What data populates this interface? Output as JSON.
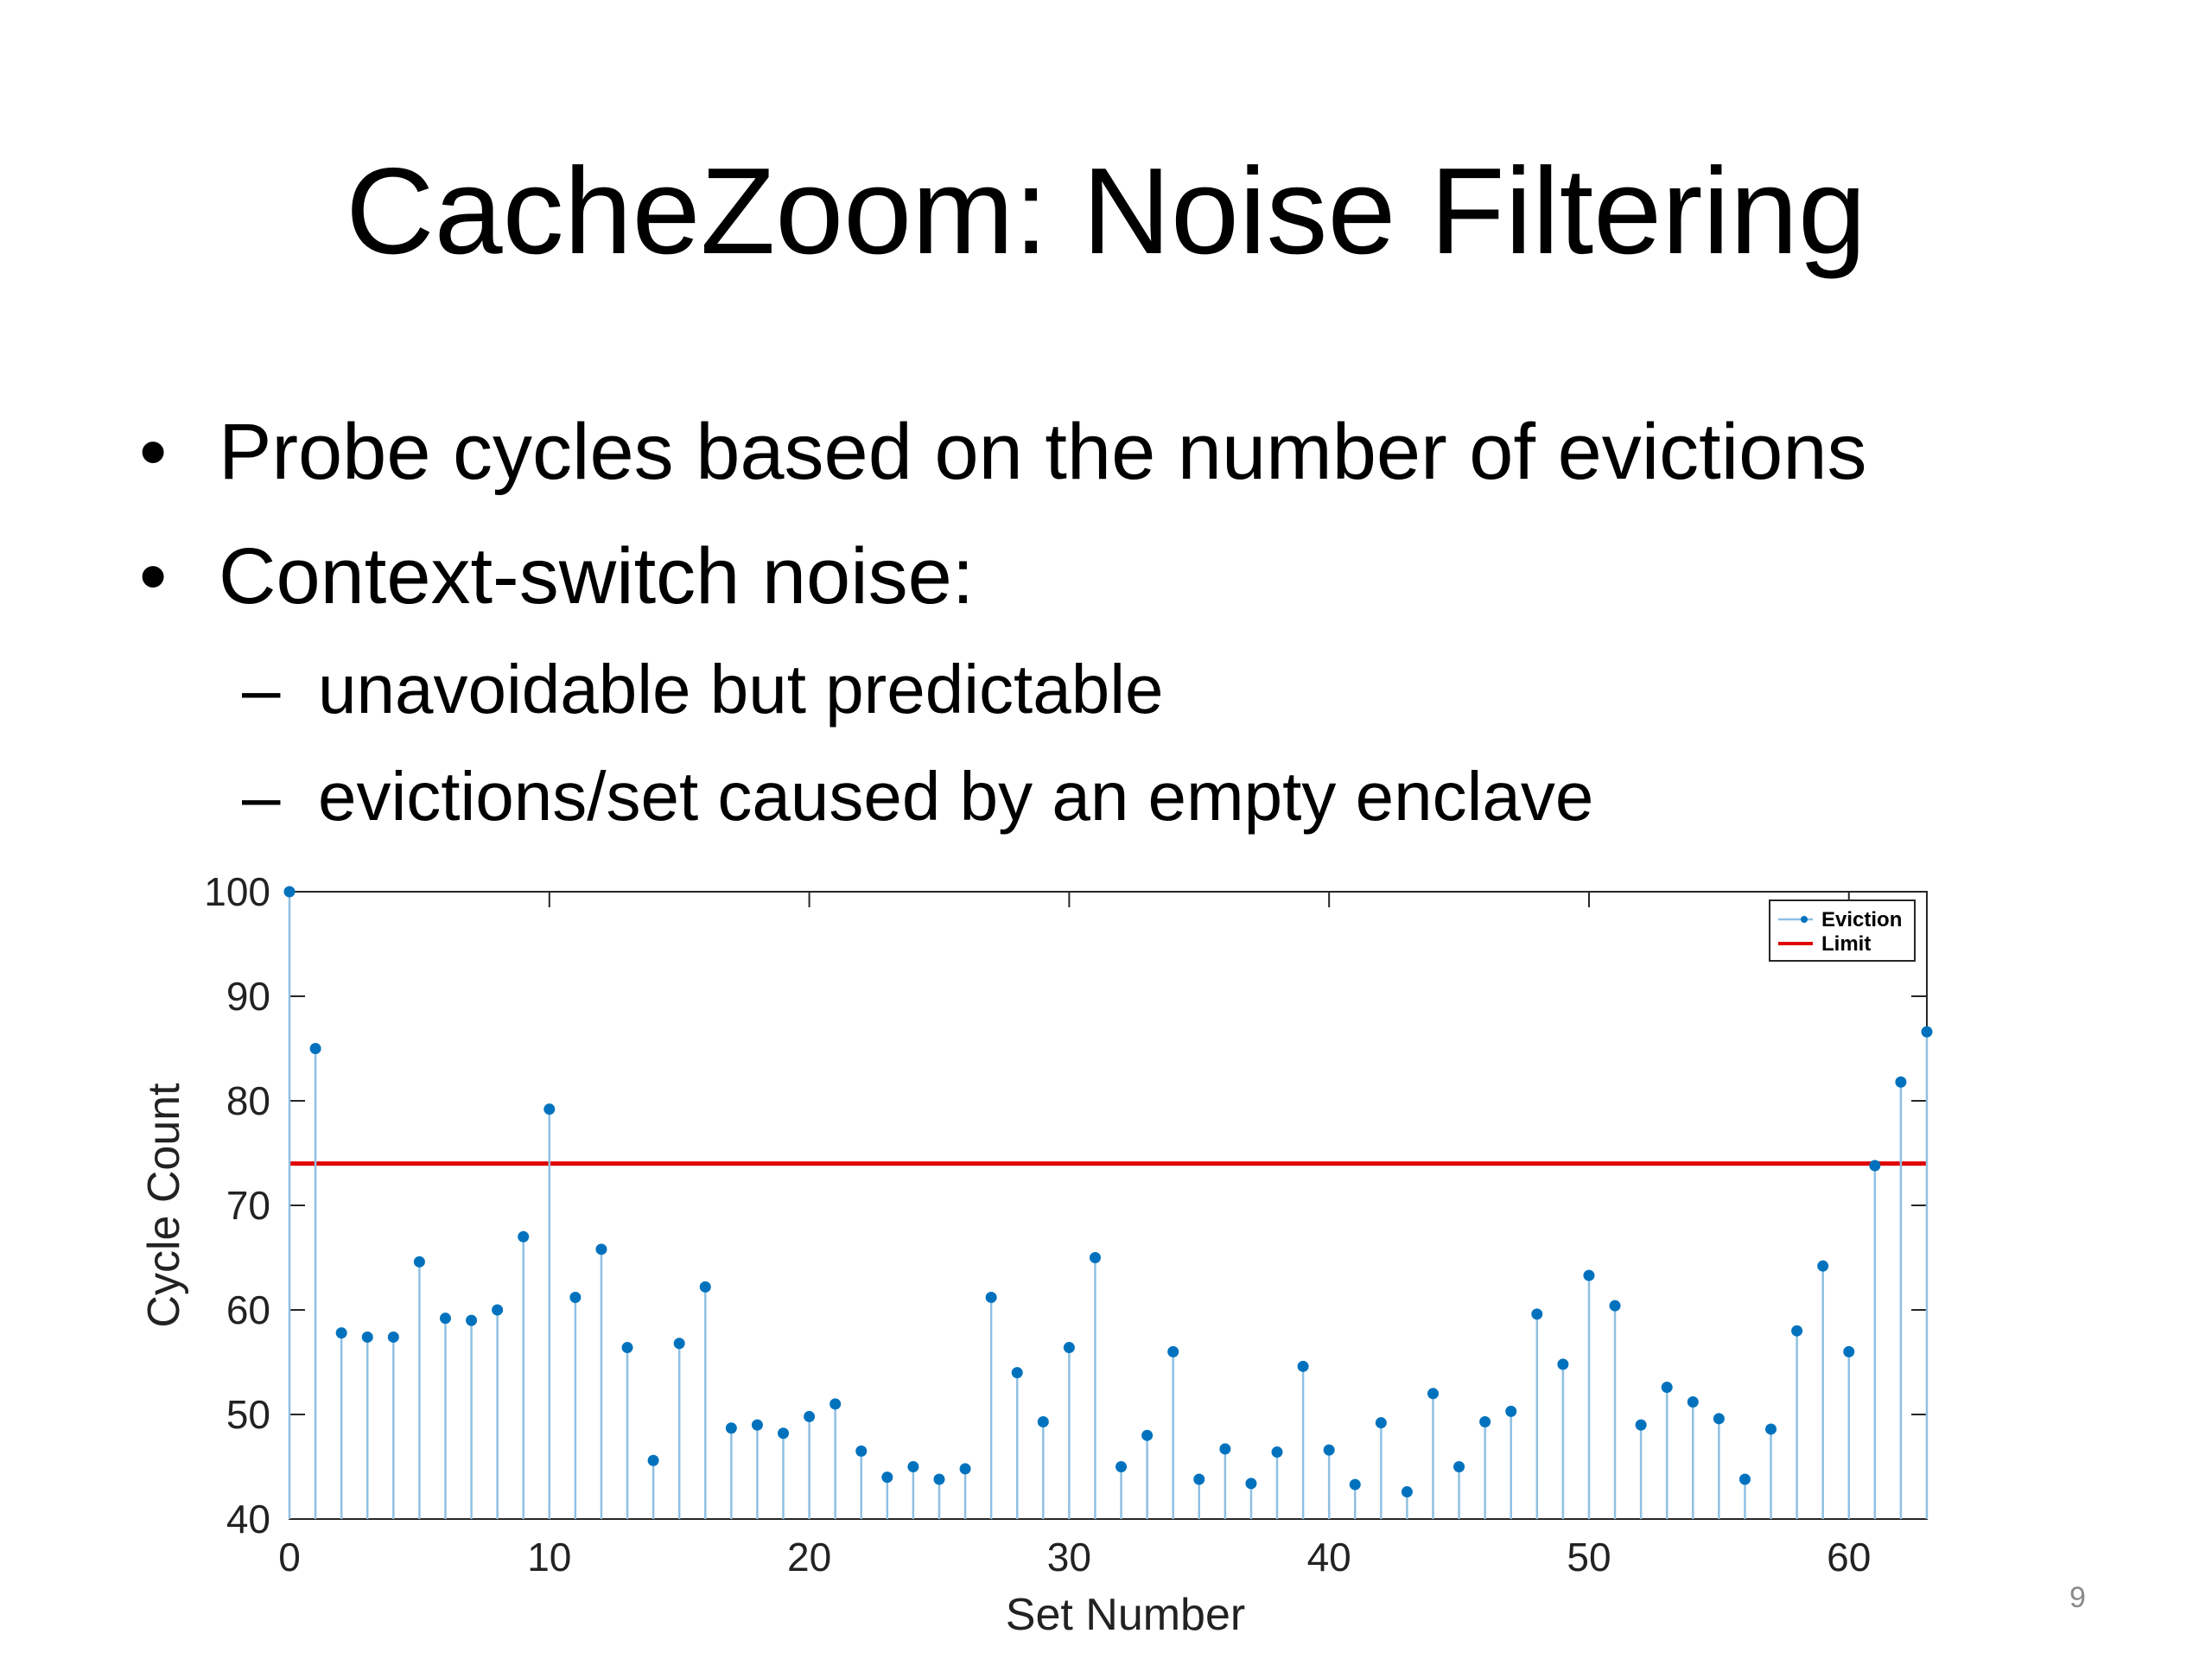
{
  "slide": {
    "title": "CacheZoom: Noise Filtering",
    "bullets": [
      {
        "mark": "•",
        "text": "Probe cycles based on the number of evictions"
      },
      {
        "mark": "•",
        "text": "Context-switch noise:"
      }
    ],
    "sub_bullets": [
      {
        "mark": "–",
        "text": "unavoidable but predictable"
      },
      {
        "mark": "–",
        "text": "evictions/set caused by an empty enclave"
      }
    ],
    "page_number": "9"
  },
  "chart_data": {
    "type": "line",
    "xlabel": "Set Number",
    "ylabel": "Cycle Count",
    "xlim": [
      0,
      63
    ],
    "ylim": [
      40,
      100
    ],
    "xticks": [
      0,
      10,
      20,
      30,
      40,
      50,
      60
    ],
    "yticks": [
      40,
      50,
      60,
      70,
      80,
      90,
      100
    ],
    "legend_position": "top-right",
    "grid": false,
    "series": [
      {
        "name": "Eviction",
        "style": "stem",
        "color": "#0072BD",
        "x": [
          0,
          1,
          2,
          3,
          4,
          5,
          6,
          7,
          8,
          9,
          10,
          11,
          12,
          13,
          14,
          15,
          16,
          17,
          18,
          19,
          20,
          21,
          22,
          23,
          24,
          25,
          26,
          27,
          28,
          29,
          30,
          31,
          32,
          33,
          34,
          35,
          36,
          37,
          38,
          39,
          40,
          41,
          42,
          43,
          44,
          45,
          46,
          47,
          48,
          49,
          50,
          51,
          52,
          53,
          54,
          55,
          56,
          57,
          58,
          59,
          60,
          61,
          62,
          63
        ],
        "values": [
          100,
          85,
          57.8,
          57.4,
          57.4,
          64.6,
          59.2,
          59,
          60,
          67,
          79.2,
          61.2,
          65.8,
          56.4,
          45.6,
          56.8,
          62.2,
          48.7,
          49,
          48.2,
          49.8,
          51,
          46.5,
          44,
          45,
          43.8,
          44.8,
          61.2,
          54,
          49.3,
          56.4,
          65,
          45,
          48,
          56,
          43.8,
          46.7,
          43.4,
          46.4,
          54.6,
          46.6,
          43.3,
          49.2,
          42.6,
          52,
          45,
          49.3,
          50.3,
          59.6,
          54.8,
          63.3,
          60.4,
          49,
          52.6,
          51.2,
          49.6,
          43.8,
          48.6,
          58,
          64.2,
          56,
          73.8,
          81.8,
          86.6
        ]
      },
      {
        "name": "Limit",
        "style": "line",
        "color": "#E00000",
        "y": 74
      }
    ]
  }
}
